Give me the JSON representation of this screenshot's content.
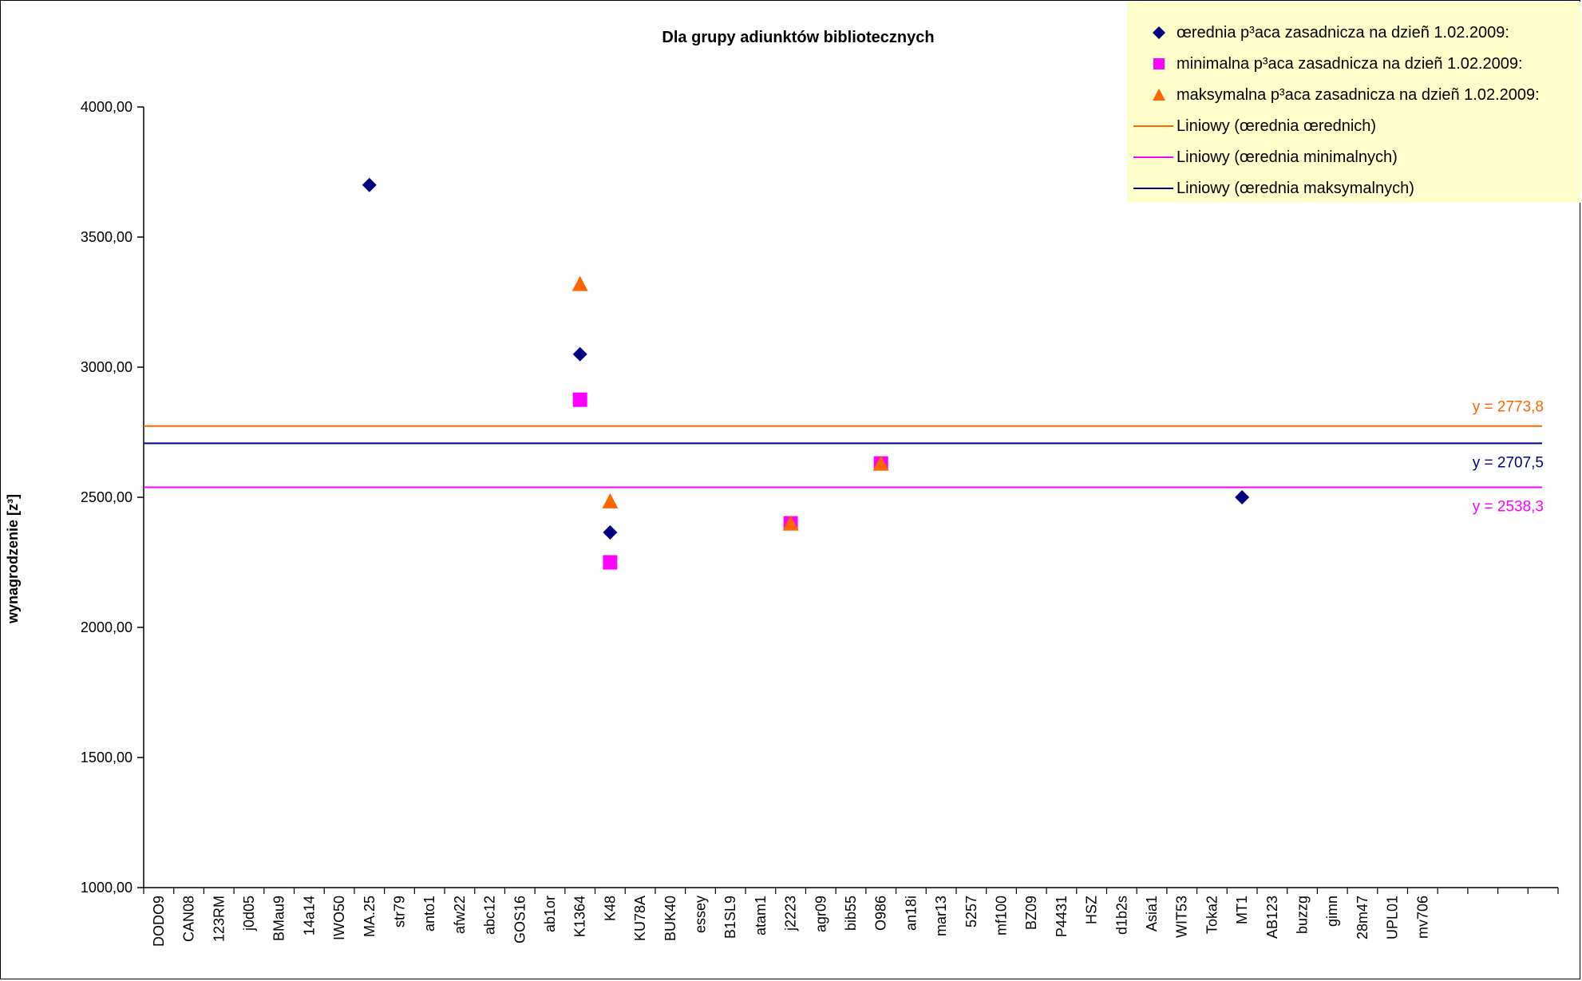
{
  "chart_data": {
    "type": "scatter",
    "title": "Dla grupy adiunktów bibliotecznych",
    "ylabel": "wynagrodzenie [z³]",
    "xlabel": "",
    "ylim": [
      1000,
      4000
    ],
    "y_ticks": [
      "1000,00",
      "1500,00",
      "2000,00",
      "2500,00",
      "3000,00",
      "3500,00",
      "4000,00"
    ],
    "y_tick_values": [
      1000,
      1500,
      2000,
      2500,
      3000,
      3500,
      4000
    ],
    "grid": false,
    "legend_position": "top-right",
    "total_slots": 47,
    "categories": [
      "DODO9",
      "CAN08",
      "123RM",
      "j0d05",
      "BMau9",
      "14a14",
      "IWO50",
      "MA.25",
      "str79",
      "anto1",
      "afw22",
      "abc12",
      "GOS16",
      "ab1or",
      "K1364",
      "K48",
      "KU78A",
      "BUK40",
      "essey",
      "B1SL9",
      "atam1",
      "j2223",
      "agr09",
      "bib55",
      "O986",
      "an18i",
      "mar13",
      "5257",
      "mf100",
      "BZ09",
      "P4431",
      "HSZ",
      "d1b2s",
      "Asia1",
      "WIT53",
      "Toka2",
      "MT1",
      "AB123",
      "buzzg",
      "gimn",
      "28m47",
      "UPL01",
      "mv706"
    ],
    "series": [
      {
        "name": "œrednia p³aca zasadnicza na dzieñ 1.02.2009:",
        "marker": "diamond",
        "color": "#000080",
        "points": [
          {
            "x": "MA.25",
            "y": 3700
          },
          {
            "x": "K1364",
            "y": 3050
          },
          {
            "x": "K48",
            "y": 2365
          },
          {
            "x": "j2223",
            "y": 2400
          },
          {
            "x": "O986",
            "y": 2630
          },
          {
            "x": "MT1",
            "y": 2500
          }
        ]
      },
      {
        "name": "minimalna p³aca zasadnicza na dzieñ 1.02.2009:",
        "marker": "square",
        "color": "#ff00ff",
        "points": [
          {
            "x": "K1364",
            "y": 2875
          },
          {
            "x": "K48",
            "y": 2250
          },
          {
            "x": "j2223",
            "y": 2400
          },
          {
            "x": "O986",
            "y": 2630
          }
        ]
      },
      {
        "name": "maksymalna p³aca zasadnicza na dzieñ 1.02.2009:",
        "marker": "triangle",
        "color": "#ff6600",
        "points": [
          {
            "x": "K1364",
            "y": 3320
          },
          {
            "x": "K48",
            "y": 2485
          },
          {
            "x": "j2223",
            "y": 2400
          },
          {
            "x": "O986",
            "y": 2630
          }
        ]
      }
    ],
    "trendlines": [
      {
        "name": "Liniowy (œrednia œrednich)",
        "color": "#ff6600",
        "y": 2773.8,
        "label": "y = 2773,8"
      },
      {
        "name": "Liniowy (œrednia minimalnych)",
        "color": "#ff00ff",
        "y": 2538.3,
        "label": "y = 2538,3"
      },
      {
        "name": "Liniowy (œrednia maksymalnych)",
        "color": "#000080",
        "y": 2707.5,
        "label": "y = 2707,5"
      }
    ]
  }
}
